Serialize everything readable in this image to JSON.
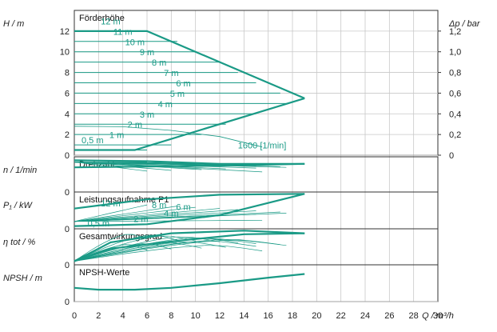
{
  "chart_data": {
    "type": "line",
    "accent_color": "#1a9a86",
    "x_axis": {
      "label": "Q / m³/h",
      "range": [
        0,
        30
      ],
      "ticks": [
        0,
        2,
        4,
        6,
        8,
        10,
        12,
        14,
        16,
        18,
        20,
        22,
        24,
        26,
        28,
        30
      ],
      "grid": true
    },
    "panels": [
      {
        "id": "head",
        "title": "Förderhöhe",
        "ylabel": "H / m",
        "y_range": [
          0,
          14
        ],
        "y_ticks": [
          0,
          2,
          4,
          6,
          8,
          10,
          12
        ],
        "y2label": "Δp / bar",
        "y2_range": [
          0,
          1.4
        ],
        "y2_ticks": [
          "0",
          "0,2",
          "0,4",
          "0,6",
          "0,8",
          "1,0",
          "1,2"
        ],
        "envelope": {
          "max": [
            [
              0,
              12
            ],
            [
              6,
              12
            ],
            [
              19,
              5.5
            ]
          ],
          "min": [
            [
              0,
              0.5
            ],
            [
              5,
              0.5
            ],
            [
              19,
              5.5
            ]
          ]
        },
        "series": [
          {
            "label": "12 m",
            "x": [
              0,
              6
            ],
            "y": [
              12,
              12
            ],
            "label_at": [
              3,
              12.5
            ]
          },
          {
            "label": "11 m",
            "x": [
              0,
              8.5
            ],
            "y": [
              11,
              11
            ],
            "label_at": [
              4,
              11.5
            ]
          },
          {
            "label": "10 m",
            "x": [
              0,
              10
            ],
            "y": [
              10,
              10
            ],
            "label_at": [
              5,
              10.5
            ]
          },
          {
            "label": "9 m",
            "x": [
              0,
              12
            ],
            "y": [
              9,
              9
            ],
            "label_at": [
              6,
              9.5
            ]
          },
          {
            "label": "8 m",
            "x": [
              0,
              13.5
            ],
            "y": [
              8,
              8
            ],
            "label_at": [
              7,
              8.5
            ]
          },
          {
            "label": "7 m",
            "x": [
              0,
              15
            ],
            "y": [
              7,
              7
            ],
            "label_at": [
              8,
              7.5
            ]
          },
          {
            "label": "6 m",
            "x": [
              0,
              17
            ],
            "y": [
              6,
              6
            ],
            "label_at": [
              9,
              6.5
            ]
          },
          {
            "label": "5 m",
            "x": [
              0,
              17.5
            ],
            "y": [
              5,
              5
            ],
            "label_at": [
              8.5,
              5.5
            ]
          },
          {
            "label": "4 m",
            "x": [
              0,
              15
            ],
            "y": [
              4,
              4
            ],
            "label_at": [
              7.5,
              4.5
            ]
          },
          {
            "label": "3 m",
            "x": [
              0,
              12.5
            ],
            "y": [
              3,
              3
            ],
            "label_at": [
              6,
              3.5
            ]
          },
          {
            "label": "2 m",
            "x": [
              0,
              10.5
            ],
            "y": [
              2,
              2
            ],
            "label_at": [
              5,
              2.5
            ]
          },
          {
            "label": "1 m",
            "x": [
              0,
              8
            ],
            "y": [
              1,
              1
            ],
            "label_at": [
              3.5,
              1.5
            ]
          },
          {
            "label": "0,5 m",
            "x": [
              0,
              6
            ],
            "y": [
              0.5,
              0.5
            ],
            "label_at": [
              1.5,
              1
            ]
          },
          {
            "label": "1600 [1/min]",
            "x": [
              0,
              4,
              8,
              12,
              15.5
            ],
            "y": [
              2.8,
              2.75,
              2.4,
              1.8,
              0.8
            ],
            "label_at": [
              15.5,
              0.5
            ]
          }
        ]
      },
      {
        "id": "speed",
        "title": "Drehzahl",
        "ylabel": "n / 1/min",
        "y_range": [
          0,
          4
        ],
        "y_ticks": [
          0
        ],
        "envelope": {
          "max": [
            [
              0,
              3.6
            ],
            [
              6,
              3.5
            ],
            [
              12,
              3.2
            ],
            [
              19,
              3.2
            ]
          ],
          "min": [
            [
              0,
              2.8
            ],
            [
              6,
              2.9
            ],
            [
              12,
              3.0
            ],
            [
              19,
              3.2
            ]
          ]
        },
        "fan": {
          "x_end": [
            6,
            8.5,
            10,
            12,
            13.5,
            15,
            17,
            17.5,
            15,
            12.5,
            10.5,
            8,
            6,
            15.5
          ],
          "y_start": 3.4,
          "y_drop": 2.0
        }
      },
      {
        "id": "power",
        "title": "Leistungsaufnahme P1",
        "ylabel": "P₁ / kW",
        "y_range": [
          0,
          4
        ],
        "y_ticks": [
          0
        ],
        "envelope": {
          "max": [
            [
              0,
              2.2
            ],
            [
              6,
              3.2
            ],
            [
              12,
              3.7
            ],
            [
              19,
              3.8
            ]
          ],
          "min": [
            [
              0,
              0.3
            ],
            [
              6,
              0.5
            ],
            [
              12,
              1.5
            ],
            [
              19,
              3.8
            ]
          ]
        },
        "series": [
          {
            "label": "12 m",
            "label_at": [
              3,
              2.8
            ]
          },
          {
            "label": "8 m",
            "label_at": [
              7,
              2.6
            ]
          },
          {
            "label": "6 m",
            "label_at": [
              9,
              2.4
            ]
          },
          {
            "label": "4 m",
            "label_at": [
              8,
              1.7
            ]
          },
          {
            "label": "2 m",
            "label_at": [
              5.5,
              1.1
            ]
          },
          {
            "label": "0,5 m",
            "label_at": [
              2,
              0.6
            ]
          }
        ],
        "fan": {
          "x_end": [
            6,
            8.5,
            10,
            12,
            13.5,
            15,
            17,
            17.5,
            15,
            12.5,
            10.5,
            8,
            6,
            15.5
          ],
          "y_start": 0.8,
          "y_rise": 1.8
        }
      },
      {
        "id": "efficiency",
        "title": "Gesamtwirkungsgrad",
        "ylabel": "η tot / %",
        "y_range": [
          0,
          4
        ],
        "y_ticks": [
          0
        ],
        "envelope": {
          "max": [
            [
              0,
              0.4
            ],
            [
              3,
              2.5
            ],
            [
              8,
              3.5
            ],
            [
              14,
              3.8
            ],
            [
              19,
              3.5
            ]
          ],
          "min": [
            [
              0,
              0.4
            ],
            [
              3,
              1.8
            ],
            [
              8,
              2.6
            ],
            [
              14,
              3.4
            ],
            [
              19,
              3.5
            ]
          ]
        },
        "fan": {
          "x_end": [
            6,
            8.5,
            10,
            12,
            13.5,
            15,
            17,
            17.5,
            15,
            12.5,
            10.5,
            8,
            6,
            15.5
          ]
        }
      },
      {
        "id": "npsh",
        "title": "NPSH-Werte",
        "ylabel": "NPSH / m",
        "y_range": [
          0,
          4
        ],
        "y_ticks": [
          0
        ],
        "series": [
          {
            "label": "",
            "x": [
              0,
              2,
              5,
              8,
              12,
              16,
              19
            ],
            "y": [
              1.5,
              1.3,
              1.3,
              1.5,
              2.0,
              2.6,
              3.0
            ]
          }
        ]
      }
    ]
  }
}
